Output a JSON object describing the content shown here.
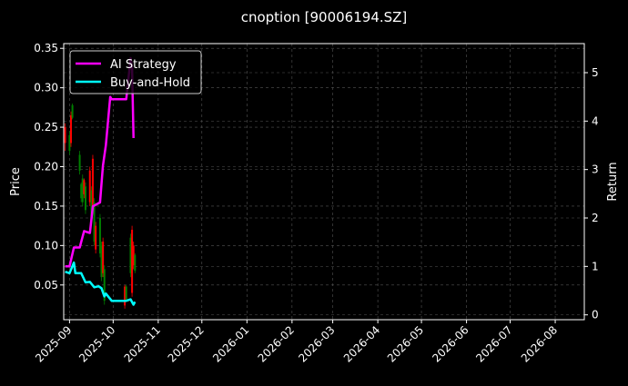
{
  "chart_data": {
    "type": "line",
    "title": "cnoption [90006194.SZ]",
    "xlabel": "",
    "ylabel_left": "Price",
    "ylabel_right": "Return",
    "xlim": [
      "2025-08-28",
      "2026-08-21"
    ],
    "ylim_left": [
      0.006,
      0.356
    ],
    "ylim_right": [
      -0.1,
      5.6
    ],
    "x_ticks": [
      "2025-09",
      "2025-10",
      "2025-11",
      "2025-12",
      "2026-01",
      "2026-02",
      "2026-03",
      "2026-04",
      "2026-05",
      "2026-06",
      "2026-07",
      "2026-08"
    ],
    "y_ticks_left": [
      "0.05",
      "0.10",
      "0.15",
      "0.20",
      "0.25",
      "0.30",
      "0.35"
    ],
    "y_ticks_right": [
      "0",
      "1",
      "2",
      "3",
      "4",
      "5"
    ],
    "grid": true,
    "legend_placement": "top-left",
    "colors": {
      "background": "#000000",
      "ai": "#ff00ff",
      "bh": "#00ffff",
      "up": "#008000",
      "down": "#ff0000",
      "grid": "#555555"
    },
    "candles": [
      {
        "date": "2025-08-29",
        "open": 0.25,
        "close": 0.23,
        "low": 0.22,
        "high": 0.255
      },
      {
        "date": "2025-09-01",
        "open": 0.22,
        "close": 0.24,
        "low": 0.215,
        "high": 0.245
      },
      {
        "date": "2025-09-02",
        "open": 0.265,
        "close": 0.23,
        "low": 0.225,
        "high": 0.27
      },
      {
        "date": "2025-09-03",
        "open": 0.262,
        "close": 0.278,
        "low": 0.26,
        "high": 0.28
      },
      {
        "date": "2025-09-08",
        "open": 0.195,
        "close": 0.215,
        "low": 0.19,
        "high": 0.22
      },
      {
        "date": "2025-09-09",
        "open": 0.16,
        "close": 0.178,
        "low": 0.155,
        "high": 0.18
      },
      {
        "date": "2025-09-10",
        "open": 0.155,
        "close": 0.185,
        "low": 0.15,
        "high": 0.19
      },
      {
        "date": "2025-09-11",
        "open": 0.183,
        "close": 0.165,
        "low": 0.16,
        "high": 0.185
      },
      {
        "date": "2025-09-12",
        "open": 0.145,
        "close": 0.175,
        "low": 0.14,
        "high": 0.18
      },
      {
        "date": "2025-09-15",
        "open": 0.195,
        "close": 0.155,
        "low": 0.15,
        "high": 0.2
      },
      {
        "date": "2025-09-16",
        "open": 0.135,
        "close": 0.17,
        "low": 0.13,
        "high": 0.175
      },
      {
        "date": "2025-09-17",
        "open": 0.21,
        "close": 0.145,
        "low": 0.14,
        "high": 0.215
      },
      {
        "date": "2025-09-18",
        "open": 0.105,
        "close": 0.155,
        "low": 0.1,
        "high": 0.16
      },
      {
        "date": "2025-09-19",
        "open": 0.125,
        "close": 0.095,
        "low": 0.09,
        "high": 0.13
      },
      {
        "date": "2025-09-22",
        "open": 0.09,
        "close": 0.135,
        "low": 0.085,
        "high": 0.14
      },
      {
        "date": "2025-09-23",
        "open": 0.06,
        "close": 0.1,
        "low": 0.055,
        "high": 0.105
      },
      {
        "date": "2025-09-24",
        "open": 0.105,
        "close": 0.065,
        "low": 0.06,
        "high": 0.11
      },
      {
        "date": "2025-09-25",
        "open": 0.03,
        "close": 0.07,
        "low": 0.025,
        "high": 0.075
      },
      {
        "date": "2025-10-09",
        "open": 0.048,
        "close": 0.024,
        "low": 0.02,
        "high": 0.05
      },
      {
        "date": "2025-10-10",
        "open": 0.032,
        "close": 0.048,
        "low": 0.03,
        "high": 0.05
      },
      {
        "date": "2025-10-13",
        "open": 0.065,
        "close": 0.11,
        "low": 0.06,
        "high": 0.115
      },
      {
        "date": "2025-10-14",
        "open": 0.12,
        "close": 0.04,
        "low": 0.035,
        "high": 0.125
      },
      {
        "date": "2025-10-15",
        "open": 0.1,
        "close": 0.075,
        "low": 0.07,
        "high": 0.105
      },
      {
        "date": "2025-10-16",
        "open": 0.068,
        "close": 0.088,
        "low": 0.065,
        "high": 0.09
      }
    ],
    "series": [
      {
        "name": "AI Strategy",
        "axis": "right",
        "points": [
          [
            "2025-08-29",
            1.0
          ],
          [
            "2025-09-01",
            1.0
          ],
          [
            "2025-09-04",
            1.39
          ],
          [
            "2025-09-08",
            1.39
          ],
          [
            "2025-09-11",
            1.73
          ],
          [
            "2025-09-15",
            1.69
          ],
          [
            "2025-09-17",
            2.24
          ],
          [
            "2025-09-22",
            2.32
          ],
          [
            "2025-09-24",
            3.08
          ],
          [
            "2025-09-26",
            3.5
          ],
          [
            "2025-09-29",
            4.5
          ],
          [
            "2025-09-30",
            4.45
          ],
          [
            "2025-10-10",
            4.45
          ],
          [
            "2025-10-13",
            5.3
          ],
          [
            "2025-10-14",
            5.1
          ],
          [
            "2025-10-15",
            3.65
          ]
        ]
      },
      {
        "name": "Buy-and-Hold",
        "axis": "right",
        "points": [
          [
            "2025-08-29",
            0.89
          ],
          [
            "2025-09-01",
            0.86
          ],
          [
            "2025-09-04",
            1.08
          ],
          [
            "2025-09-05",
            0.86
          ],
          [
            "2025-09-09",
            0.86
          ],
          [
            "2025-09-12",
            0.67
          ],
          [
            "2025-09-15",
            0.68
          ],
          [
            "2025-09-18",
            0.57
          ],
          [
            "2025-09-21",
            0.59
          ],
          [
            "2025-09-23",
            0.55
          ],
          [
            "2025-09-25",
            0.38
          ],
          [
            "2025-09-26",
            0.44
          ],
          [
            "2025-09-30",
            0.29
          ],
          [
            "2025-10-10",
            0.29
          ],
          [
            "2025-10-13",
            0.32
          ],
          [
            "2025-10-15",
            0.21
          ],
          [
            "2025-10-16",
            0.27
          ]
        ]
      }
    ]
  }
}
